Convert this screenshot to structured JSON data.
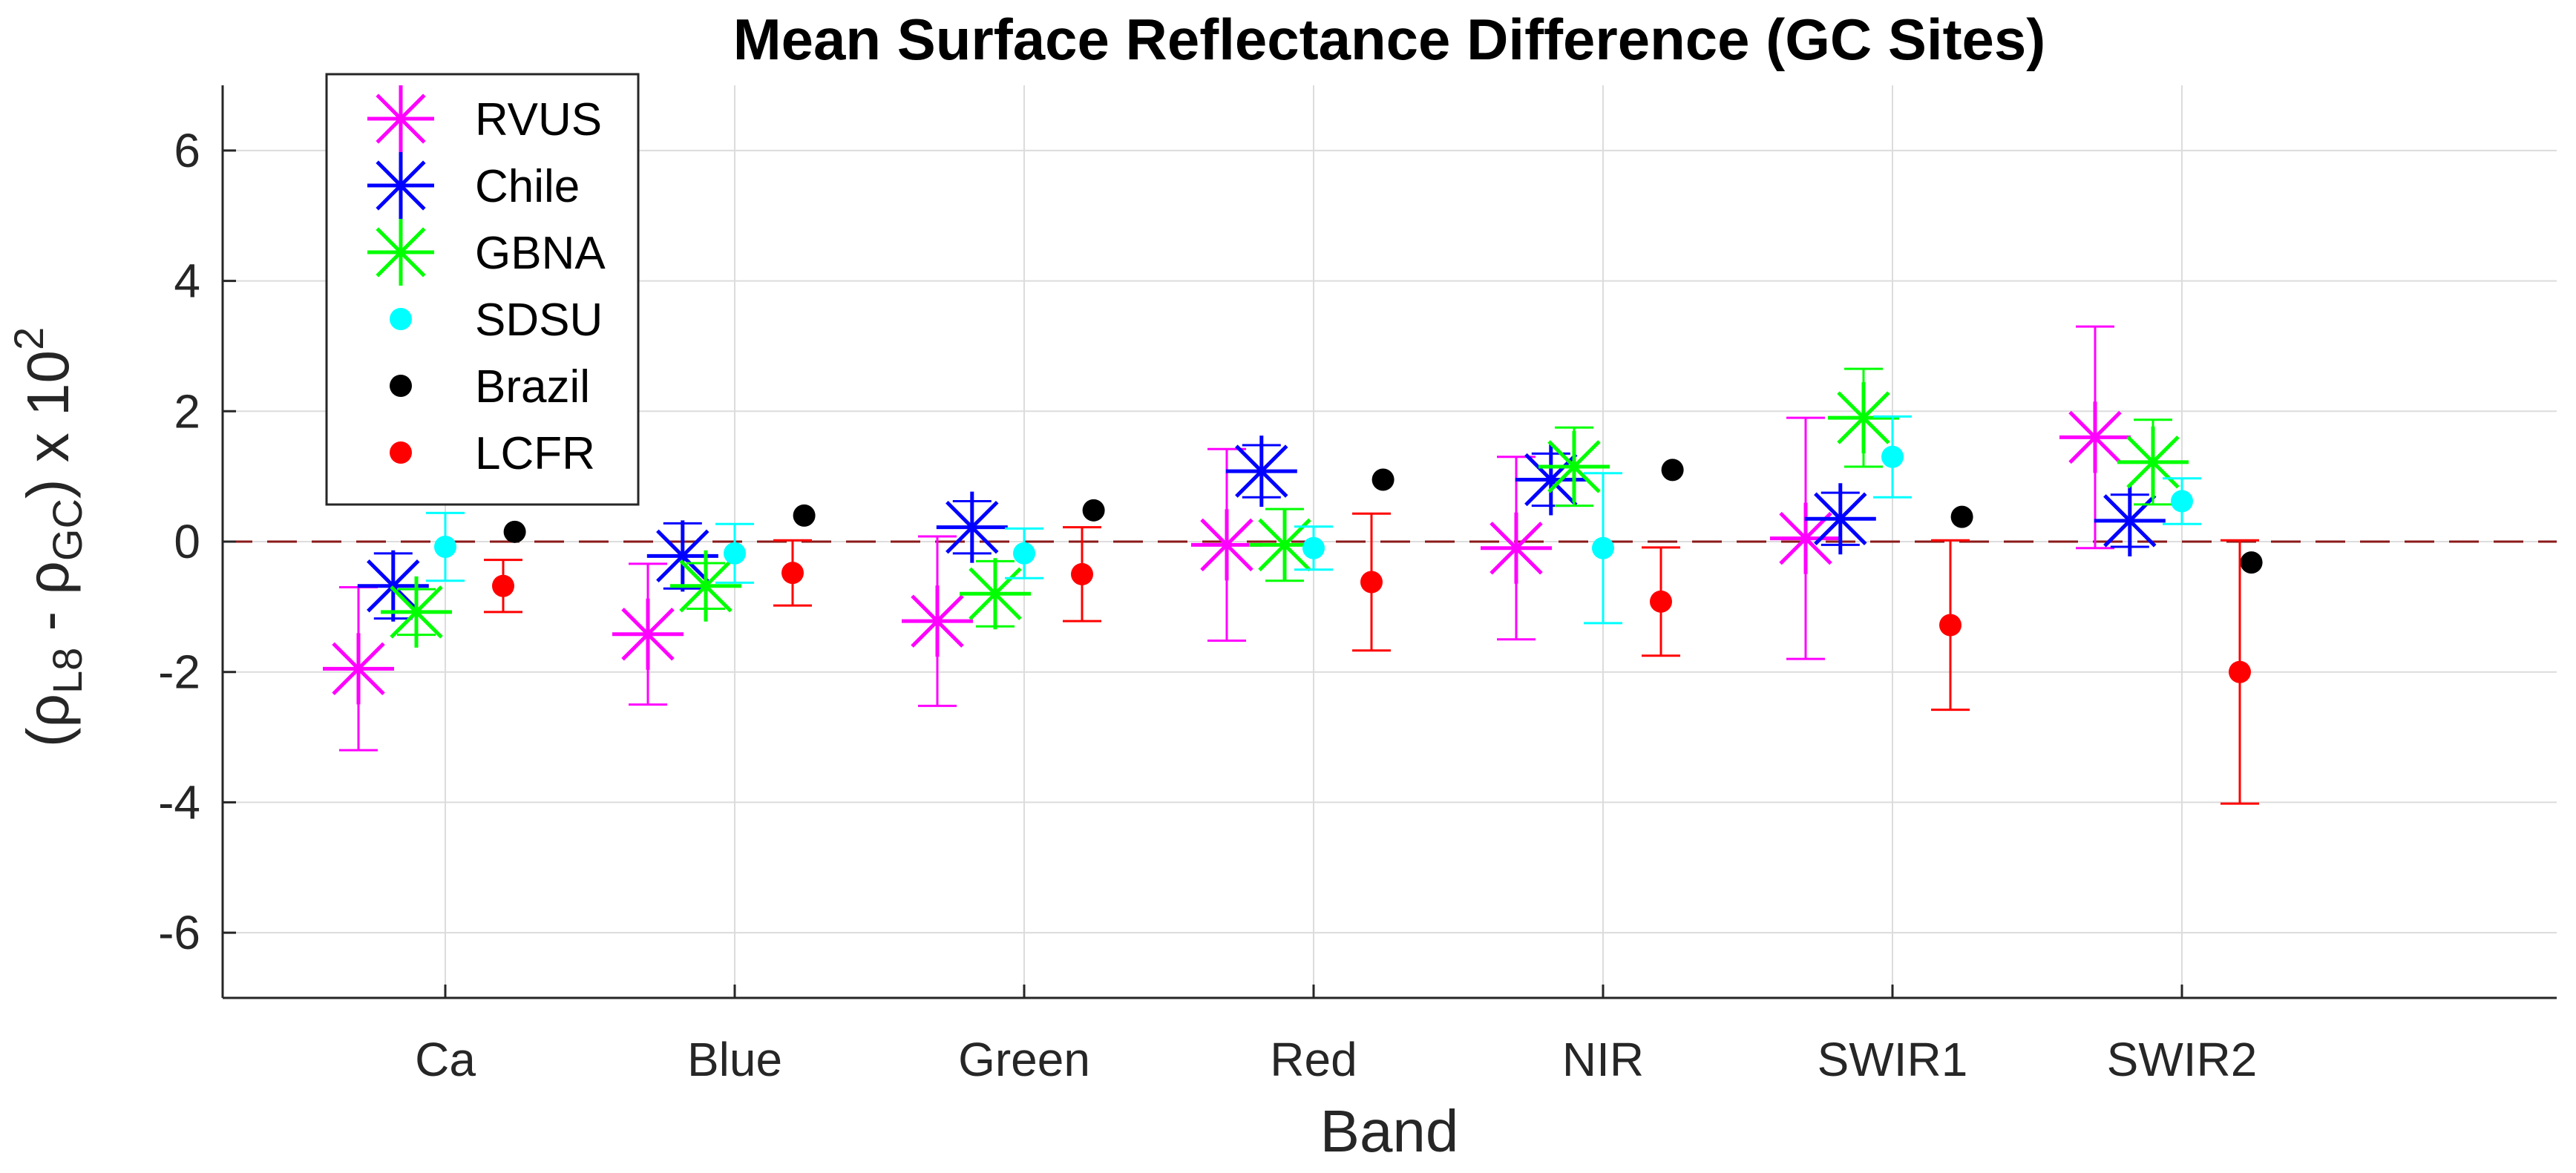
{
  "chart_data": {
    "type": "scatter",
    "title": "Mean Surface Reflectance Difference (GC Sites)",
    "xlabel": "Band",
    "ylabel": {
      "open": "(ρ",
      "sub1": "L8",
      "mid": " - ρ",
      "sub2": "GC",
      "close": ") x 10",
      "sup": "2"
    },
    "categories": [
      "Ca",
      "Blue",
      "Green",
      "Red",
      "NIR",
      "SWIR1",
      "SWIR2"
    ],
    "ylim": [
      -7,
      7
    ],
    "yticks": [
      -6,
      -4,
      -2,
      0,
      2,
      4,
      6
    ],
    "ytick_labels": [
      "-6",
      "-4",
      "-2",
      "0",
      "2",
      "4",
      "6"
    ],
    "grid": true,
    "zero_line": {
      "value": 0,
      "style": "dashed",
      "color": "#8b1a1a"
    },
    "legend_position": "top-left",
    "series": [
      {
        "name": "RVUS",
        "marker": "asterisk",
        "color": "#ff00ff",
        "offset": -0.3,
        "values": [
          -1.95,
          -1.42,
          -1.22,
          -0.05,
          -0.1,
          0.05,
          1.6
        ],
        "err": [
          1.25,
          1.08,
          1.3,
          1.47,
          1.4,
          1.85,
          1.7
        ]
      },
      {
        "name": "Chile",
        "marker": "asterisk",
        "color": "#0000ff",
        "offset": -0.18,
        "values": [
          -0.68,
          -0.22,
          0.22,
          1.08,
          0.95,
          0.35,
          0.32
        ],
        "err": [
          0.5,
          0.5,
          0.4,
          0.4,
          0.4,
          0.4,
          0.4
        ]
      },
      {
        "name": "GBNA",
        "marker": "asterisk",
        "color": "#00ff00",
        "offset": -0.1,
        "values": [
          -1.08,
          -0.68,
          -0.8,
          -0.05,
          1.15,
          1.9,
          1.22
        ],
        "err": [
          0.35,
          0.35,
          0.5,
          0.55,
          0.6,
          0.75,
          0.65
        ]
      },
      {
        "name": "SDSU",
        "marker": "dot",
        "color": "#00ffff",
        "offset": 0.0,
        "values": [
          -0.08,
          -0.18,
          -0.18,
          -0.1,
          -0.1,
          1.3,
          0.62
        ],
        "err": [
          0.52,
          0.45,
          0.38,
          0.33,
          1.15,
          0.62,
          0.35
        ]
      },
      {
        "name": "Brazil",
        "marker": "dot",
        "color": "#000000",
        "offset": 0.24,
        "values": [
          0.15,
          0.4,
          0.48,
          0.95,
          1.1,
          0.38,
          -0.32
        ],
        "err": [
          0,
          0,
          0,
          0,
          0,
          0,
          0
        ]
      },
      {
        "name": "LCFR",
        "marker": "dot",
        "color": "#ff0000",
        "offset": 0.2,
        "values": [
          -0.68,
          -0.48,
          -0.5,
          -0.62,
          -0.92,
          -1.28,
          -2.0
        ],
        "err": [
          0.4,
          0.5,
          0.72,
          1.05,
          0.83,
          1.3,
          2.02
        ]
      }
    ]
  }
}
